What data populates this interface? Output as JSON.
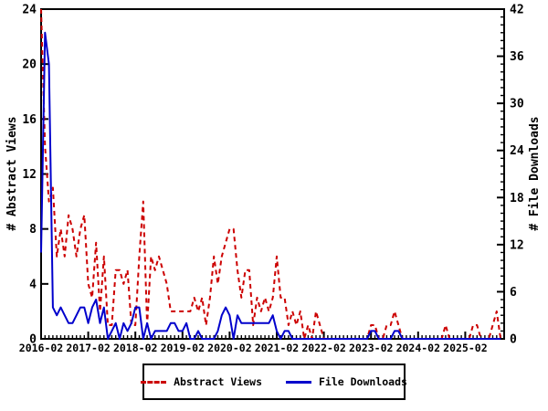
{
  "chart_data": {
    "type": "line",
    "title": "",
    "x_start": "2016-02",
    "x_months_count": 118,
    "x_tick_labels": [
      "2016-02",
      "2017-02",
      "2018-02",
      "2019-02",
      "2020-02",
      "2021-02",
      "2022-02",
      "2023-02",
      "2024-02",
      "2025-02"
    ],
    "y_left": {
      "label": "# Abstract Views",
      "min": 0,
      "max": 24,
      "major_tick_step": 4,
      "minor_tick_step": null
    },
    "y_right": {
      "label": "# File Downloads",
      "min": 0,
      "max": 42,
      "major_tick_step": 6,
      "minor_tick_step": 1
    },
    "grid": false,
    "legend_position": "bottom-center",
    "series": [
      {
        "name": "Abstract Views",
        "axis": "left",
        "color": "#cc0000",
        "line_style": "dashed",
        "values": [
          24,
          14,
          10,
          11,
          6,
          8,
          6,
          9,
          8,
          6,
          8,
          9,
          4,
          3,
          7,
          2,
          6,
          1,
          1,
          5,
          5,
          4,
          5,
          1,
          1,
          6,
          10,
          1,
          6,
          5,
          6,
          5,
          4,
          2,
          2,
          2,
          2,
          2,
          2,
          3,
          2,
          3,
          1,
          3,
          6,
          4,
          6,
          7,
          8,
          8,
          5,
          3,
          5,
          5,
          1,
          3,
          2,
          3,
          2,
          3,
          6,
          3,
          3,
          1,
          2,
          1,
          2,
          0,
          1,
          0,
          2,
          1,
          0,
          0,
          0,
          0,
          0,
          0,
          0,
          0,
          0,
          0,
          0,
          0,
          1,
          1,
          0,
          0,
          1,
          1,
          2,
          1,
          0,
          0,
          0,
          0,
          0,
          0,
          0,
          0,
          0,
          0,
          0,
          1,
          0,
          0,
          0,
          0,
          0,
          0,
          1,
          1,
          0,
          0,
          0,
          1,
          2,
          0
        ]
      },
      {
        "name": "File Downloads",
        "axis": "right",
        "color": "#0000cc",
        "line_style": "solid",
        "values": [
          11,
          39,
          35,
          4,
          3,
          4,
          3,
          2,
          2,
          3,
          4,
          4,
          2,
          4,
          5,
          2,
          4,
          0,
          1,
          2,
          0,
          2,
          1,
          2,
          4,
          4,
          0,
          2,
          0,
          1,
          1,
          1,
          1,
          2,
          2,
          1,
          1,
          2,
          0,
          0,
          1,
          0,
          0,
          0,
          0,
          1,
          3,
          4,
          3,
          0,
          3,
          2,
          2,
          2,
          2,
          2,
          2,
          2,
          2,
          3,
          1,
          0,
          1,
          1,
          0,
          0,
          0,
          0,
          0,
          0,
          0,
          0,
          0,
          0,
          0,
          0,
          0,
          0,
          0,
          0,
          0,
          0,
          0,
          0,
          1,
          1,
          0,
          0,
          0,
          0,
          1,
          1,
          0,
          0,
          0,
          0,
          0,
          0,
          0,
          0,
          0,
          0,
          0,
          0,
          0,
          0,
          0,
          0,
          0,
          0,
          0,
          0,
          0,
          0,
          0,
          0,
          0,
          0
        ]
      }
    ],
    "colors": {
      "axis": "#000000",
      "background": "#ffffff"
    }
  }
}
